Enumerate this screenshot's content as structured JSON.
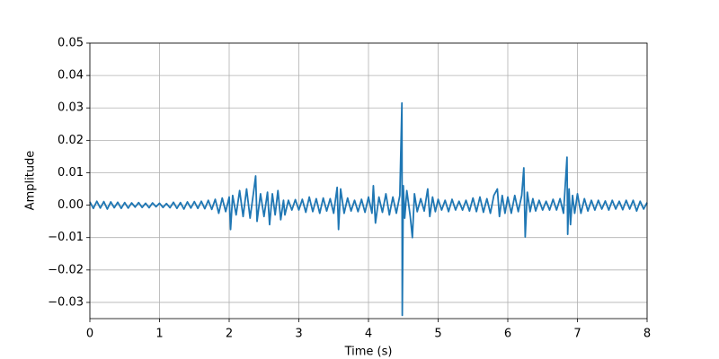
{
  "chart_data": {
    "type": "line",
    "x_label": "Time (s)",
    "y_label": "Amplitude",
    "x": [
      0,
      0.05,
      0.1,
      0.15,
      0.2,
      0.25,
      0.3,
      0.35,
      0.4,
      0.45,
      0.5,
      0.55,
      0.6,
      0.65,
      0.7,
      0.75,
      0.8,
      0.85,
      0.9,
      0.95,
      1.0,
      1.05,
      1.1,
      1.15,
      1.2,
      1.25,
      1.3,
      1.35,
      1.4,
      1.45,
      1.5,
      1.55,
      1.6,
      1.65,
      1.7,
      1.75,
      1.8,
      1.85,
      1.9,
      1.95,
      2.0,
      2.02,
      2.05,
      2.1,
      2.15,
      2.2,
      2.25,
      2.3,
      2.35,
      2.38,
      2.4,
      2.45,
      2.5,
      2.55,
      2.58,
      2.62,
      2.66,
      2.7,
      2.74,
      2.78,
      2.8,
      2.85,
      2.9,
      2.95,
      3.0,
      3.05,
      3.1,
      3.15,
      3.2,
      3.25,
      3.3,
      3.35,
      3.4,
      3.45,
      3.5,
      3.55,
      3.57,
      3.6,
      3.65,
      3.7,
      3.75,
      3.8,
      3.85,
      3.9,
      3.95,
      4.0,
      4.05,
      4.07,
      4.1,
      4.15,
      4.2,
      4.25,
      4.3,
      4.35,
      4.4,
      4.45,
      4.48,
      4.485,
      4.5,
      4.52,
      4.55,
      4.6,
      4.63,
      4.66,
      4.7,
      4.75,
      4.8,
      4.85,
      4.88,
      4.92,
      4.96,
      5.0,
      5.05,
      5.1,
      5.15,
      5.2,
      5.25,
      5.3,
      5.35,
      5.4,
      5.45,
      5.5,
      5.55,
      5.6,
      5.65,
      5.7,
      5.75,
      5.8,
      5.85,
      5.88,
      5.92,
      5.96,
      6.0,
      6.05,
      6.1,
      6.15,
      6.2,
      6.23,
      6.25,
      6.28,
      6.32,
      6.36,
      6.4,
      6.45,
      6.5,
      6.55,
      6.6,
      6.65,
      6.7,
      6.75,
      6.8,
      6.85,
      6.86,
      6.88,
      6.9,
      6.93,
      6.96,
      7.0,
      7.05,
      7.1,
      7.15,
      7.2,
      7.25,
      7.3,
      7.35,
      7.4,
      7.45,
      7.5,
      7.55,
      7.6,
      7.65,
      7.7,
      7.75,
      7.8,
      7.85,
      7.9,
      7.95,
      8.0
    ],
    "values": [
      0.001,
      -0.001,
      0.0012,
      -0.0009,
      0.0011,
      -0.0012,
      0.001,
      -0.0008,
      0.0009,
      -0.001,
      0.0008,
      -0.0009,
      0.0007,
      -0.0006,
      0.0008,
      -0.0007,
      0.0006,
      -0.0008,
      0.0007,
      -0.0005,
      0.0006,
      -0.0007,
      0.0005,
      -0.0008,
      0.0009,
      -0.001,
      0.0008,
      -0.0012,
      0.001,
      -0.0009,
      0.0011,
      -0.001,
      0.0012,
      -0.0011,
      0.0015,
      -0.0013,
      0.0018,
      -0.0025,
      0.0022,
      -0.002,
      0.0025,
      -0.0075,
      0.003,
      -0.003,
      0.0045,
      -0.0035,
      0.005,
      -0.004,
      0.004,
      0.009,
      -0.005,
      0.0035,
      -0.0035,
      0.004,
      -0.006,
      0.0035,
      -0.003,
      0.0045,
      -0.0045,
      0.0015,
      -0.003,
      0.0015,
      -0.0015,
      0.0017,
      -0.0015,
      0.0018,
      -0.0022,
      0.0025,
      -0.002,
      0.002,
      -0.0025,
      0.0022,
      -0.0018,
      0.002,
      -0.0025,
      0.0055,
      -0.0075,
      0.005,
      -0.0025,
      0.0022,
      -0.0018,
      0.0015,
      -0.002,
      0.0018,
      -0.0022,
      0.0025,
      -0.0025,
      0.006,
      -0.0055,
      0.0025,
      -0.0022,
      0.0035,
      -0.003,
      0.0025,
      -0.0025,
      0.003,
      0.0315,
      -0.034,
      0.006,
      -0.004,
      0.0045,
      -0.0035,
      -0.01,
      0.0035,
      -0.002,
      0.002,
      -0.0018,
      0.005,
      -0.0035,
      0.0025,
      -0.002,
      0.0018,
      -0.0015,
      0.0015,
      -0.002,
      0.0018,
      -0.0015,
      0.0012,
      -0.0015,
      0.0015,
      -0.0018,
      0.0022,
      -0.002,
      0.0025,
      -0.0022,
      0.002,
      -0.0025,
      0.003,
      0.005,
      -0.0035,
      0.003,
      -0.0025,
      0.0025,
      -0.0025,
      0.003,
      -0.002,
      0.003,
      0.0115,
      -0.0098,
      0.004,
      -0.002,
      0.002,
      -0.0018,
      0.0015,
      -0.0015,
      0.0012,
      -0.0015,
      0.0018,
      -0.0015,
      0.002,
      -0.0025,
      0.0148,
      -0.009,
      0.005,
      -0.006,
      0.003,
      -0.0025,
      0.0035,
      -0.0025,
      0.002,
      -0.0018,
      0.0015,
      -0.0015,
      0.0015,
      -0.0012,
      0.0013,
      -0.0015,
      0.0015,
      -0.0012,
      0.0012,
      -0.0014,
      0.0015,
      -0.0012,
      0.0015,
      -0.0018,
      0.0012,
      -0.0012,
      0.0008
    ],
    "color": "#1f77b4",
    "xlim": [
      0,
      8
    ],
    "xticks": [
      0,
      1,
      2,
      3,
      4,
      5,
      6,
      7,
      8
    ],
    "ylim": [
      -0.035,
      0.05
    ],
    "yticks": [
      {
        "value": -0.03,
        "label": "−0.03"
      },
      {
        "value": -0.02,
        "label": "−0.02"
      },
      {
        "value": -0.01,
        "label": "−0.01"
      },
      {
        "value": 0,
        "label": "0.00"
      },
      {
        "value": 0.01,
        "label": "0.01"
      },
      {
        "value": 0.02,
        "label": "0.02"
      },
      {
        "value": 0.03,
        "label": "0.03"
      },
      {
        "value": 0.04,
        "label": "0.04"
      },
      {
        "value": 0.05,
        "label": "0.05"
      }
    ],
    "grid": true
  }
}
